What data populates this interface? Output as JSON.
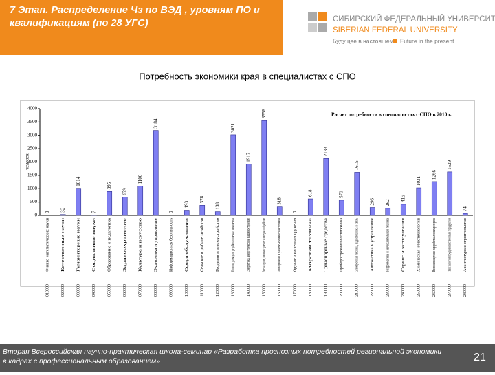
{
  "header": {
    "title": "7 Этап. Распределение Чз по ВЭД , уровням ПО и квалификациям (по 28 УГС)",
    "logo_ru": "СИБИРСКИЙ ФЕДЕРАЛЬНЫЙ УНИВЕРСИТЕТ",
    "logo_en": "SIBERIAN FEDERAL UNIVERSITY",
    "motto_ru": "Будущее в настоящем",
    "motto_en": "Future in the present"
  },
  "subtitle": "Потребность экономики края в специалистах с СПО",
  "chart_data": {
    "type": "bar",
    "title": "Расчет потребности в специалистах с СПО в 2010 г.",
    "y_label": "человек",
    "color": "#7f7ff2",
    "categories": [
      "Физико-математические науки",
      "Естественные науки",
      "Гуманитарные науки",
      "Социальные науки",
      "Образование и педагогика",
      "Здравоохранение",
      "Культура и искусство",
      "Экономика и управление",
      "Информационная безопасность",
      "Сфера обслуживания",
      "Сельское и рыбное хозяйство",
      "Геодезия и землеустройство",
      "Геология, разведка и разработка полезных ископаемых",
      "Энергетика, энергетическое машиностроение",
      "Металлургия, машиностроение и материалообработка",
      "Авиационная и ракетно-космическая техника",
      "Оружие и системы вооружения",
      "Морская техника",
      "Транспортные средства",
      "Приборостроение и оптотехника",
      "Электронная техника, радиотехника и связь",
      "Автоматика и управление",
      "Информатика и вычислительная техника",
      "Сервис и эксплуатация",
      "Химическая и биотехнологии",
      "Воспроизводство и переработка лесных ресурсов",
      "Технология продовольственных продуктов",
      "Архитектура и строительство"
    ],
    "codes": [
      "010000",
      "020000",
      "030000",
      "040000",
      "050000",
      "060000",
      "070000",
      "080000",
      "090000",
      "100000",
      "110000",
      "120000",
      "130000",
      "140000",
      "150000",
      "160000",
      "170000",
      "180000",
      "190000",
      "200000",
      "210000",
      "220000",
      "230000",
      "240000",
      "250000",
      "260000",
      "270000",
      "280000"
    ],
    "values": [
      0,
      32,
      1014,
      7,
      895,
      679,
      1100,
      3184,
      0,
      193,
      378,
      138,
      3021,
      1917,
      3556,
      318,
      0,
      618,
      2133,
      570,
      1615,
      296,
      262,
      415,
      1031,
      1266,
      1629,
      74
    ],
    "ylim": [
      0,
      4000
    ],
    "yticks": [
      0,
      500,
      1000,
      1500,
      2000,
      2500,
      3000,
      3500,
      4000
    ]
  },
  "footer": {
    "text": "Вторая Всероссийская научно-практическая школа-семинар «Разработка прогнозных потребностей региональной экономики в кадрах с профессиональным образованием»",
    "page": "21"
  }
}
